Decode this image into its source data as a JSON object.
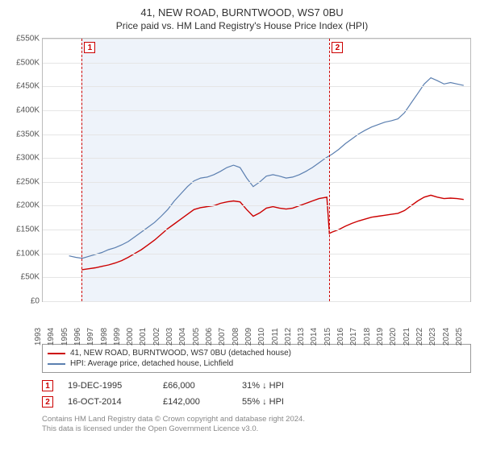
{
  "title": "41, NEW ROAD, BURNTWOOD, WS7 0BU",
  "subtitle": "Price paid vs. HM Land Registry's House Price Index (HPI)",
  "chart": {
    "type": "line",
    "background_color": "#ffffff",
    "shaded_band_color": "#eef3fa",
    "grid_color": "#e5e5e5",
    "border_color": "#bbbbbb",
    "xlim": [
      1993,
      2025.5
    ],
    "ylim": [
      0,
      550000
    ],
    "ytick_step": 50000,
    "y_ticks": [
      "£0",
      "£50K",
      "£100K",
      "£150K",
      "£200K",
      "£250K",
      "£300K",
      "£350K",
      "£400K",
      "£450K",
      "£500K",
      "£550K"
    ],
    "x_ticks": [
      1993,
      1994,
      1995,
      1996,
      1997,
      1998,
      1999,
      2000,
      2001,
      2002,
      2003,
      2004,
      2005,
      2006,
      2007,
      2008,
      2009,
      2010,
      2011,
      2012,
      2013,
      2014,
      2015,
      2016,
      2017,
      2018,
      2019,
      2020,
      2021,
      2022,
      2023,
      2024,
      2025
    ],
    "label_fontsize": 10,
    "shaded_range": [
      1995.97,
      2014.79
    ],
    "series": [
      {
        "name": "41, NEW ROAD, BURNTWOOD, WS7 0BU (detached house)",
        "color": "#cc0000",
        "line_width": 1.4,
        "points": [
          [
            1995.97,
            66000
          ],
          [
            1996.5,
            68000
          ],
          [
            1997,
            70000
          ],
          [
            1997.5,
            73000
          ],
          [
            1998,
            76000
          ],
          [
            1998.5,
            80000
          ],
          [
            1999,
            85000
          ],
          [
            1999.5,
            92000
          ],
          [
            2000,
            100000
          ],
          [
            2000.5,
            108000
          ],
          [
            2001,
            118000
          ],
          [
            2001.5,
            128000
          ],
          [
            2002,
            140000
          ],
          [
            2002.5,
            152000
          ],
          [
            2003,
            162000
          ],
          [
            2003.5,
            172000
          ],
          [
            2004,
            182000
          ],
          [
            2004.5,
            192000
          ],
          [
            2005,
            196000
          ],
          [
            2005.5,
            198000
          ],
          [
            2006,
            200000
          ],
          [
            2006.5,
            205000
          ],
          [
            2007,
            208000
          ],
          [
            2007.5,
            210000
          ],
          [
            2008,
            208000
          ],
          [
            2008.5,
            192000
          ],
          [
            2009,
            178000
          ],
          [
            2009.5,
            185000
          ],
          [
            2010,
            195000
          ],
          [
            2010.5,
            198000
          ],
          [
            2011,
            195000
          ],
          [
            2011.5,
            193000
          ],
          [
            2012,
            195000
          ],
          [
            2012.5,
            200000
          ],
          [
            2013,
            205000
          ],
          [
            2013.5,
            210000
          ],
          [
            2014,
            215000
          ],
          [
            2014.6,
            218000
          ],
          [
            2014.79,
            142000
          ],
          [
            2015,
            145000
          ],
          [
            2015.5,
            150000
          ],
          [
            2016,
            157000
          ],
          [
            2016.5,
            163000
          ],
          [
            2017,
            168000
          ],
          [
            2017.5,
            172000
          ],
          [
            2018,
            176000
          ],
          [
            2018.5,
            178000
          ],
          [
            2019,
            180000
          ],
          [
            2019.5,
            182000
          ],
          [
            2020,
            184000
          ],
          [
            2020.5,
            190000
          ],
          [
            2021,
            200000
          ],
          [
            2021.5,
            210000
          ],
          [
            2022,
            218000
          ],
          [
            2022.5,
            222000
          ],
          [
            2023,
            218000
          ],
          [
            2023.5,
            215000
          ],
          [
            2024,
            216000
          ],
          [
            2024.5,
            215000
          ],
          [
            2025,
            213000
          ]
        ]
      },
      {
        "name": "HPI: Average price, detached house, Lichfield",
        "color": "#5b7fb0",
        "line_width": 1.2,
        "points": [
          [
            1995,
            95000
          ],
          [
            1995.5,
            92000
          ],
          [
            1996,
            90000
          ],
          [
            1996.5,
            94000
          ],
          [
            1997,
            98000
          ],
          [
            1997.5,
            102000
          ],
          [
            1998,
            108000
          ],
          [
            1998.5,
            112000
          ],
          [
            1999,
            118000
          ],
          [
            1999.5,
            125000
          ],
          [
            2000,
            135000
          ],
          [
            2000.5,
            145000
          ],
          [
            2001,
            155000
          ],
          [
            2001.5,
            165000
          ],
          [
            2002,
            178000
          ],
          [
            2002.5,
            192000
          ],
          [
            2003,
            210000
          ],
          [
            2003.5,
            225000
          ],
          [
            2004,
            240000
          ],
          [
            2004.5,
            252000
          ],
          [
            2005,
            258000
          ],
          [
            2005.5,
            260000
          ],
          [
            2006,
            265000
          ],
          [
            2006.5,
            272000
          ],
          [
            2007,
            280000
          ],
          [
            2007.5,
            285000
          ],
          [
            2008,
            280000
          ],
          [
            2008.5,
            258000
          ],
          [
            2009,
            240000
          ],
          [
            2009.5,
            250000
          ],
          [
            2010,
            262000
          ],
          [
            2010.5,
            265000
          ],
          [
            2011,
            262000
          ],
          [
            2011.5,
            258000
          ],
          [
            2012,
            260000
          ],
          [
            2012.5,
            265000
          ],
          [
            2013,
            272000
          ],
          [
            2013.5,
            280000
          ],
          [
            2014,
            290000
          ],
          [
            2014.5,
            300000
          ],
          [
            2015,
            308000
          ],
          [
            2015.5,
            318000
          ],
          [
            2016,
            330000
          ],
          [
            2016.5,
            340000
          ],
          [
            2017,
            350000
          ],
          [
            2017.5,
            358000
          ],
          [
            2018,
            365000
          ],
          [
            2018.5,
            370000
          ],
          [
            2019,
            375000
          ],
          [
            2019.5,
            378000
          ],
          [
            2020,
            382000
          ],
          [
            2020.5,
            395000
          ],
          [
            2021,
            415000
          ],
          [
            2021.5,
            435000
          ],
          [
            2022,
            455000
          ],
          [
            2022.5,
            468000
          ],
          [
            2023,
            462000
          ],
          [
            2023.5,
            455000
          ],
          [
            2024,
            458000
          ],
          [
            2024.5,
            455000
          ],
          [
            2025,
            452000
          ]
        ]
      }
    ],
    "markers": [
      {
        "id": "1",
        "x": 1995.97,
        "color": "#cc0000"
      },
      {
        "id": "2",
        "x": 2014.79,
        "color": "#cc0000"
      }
    ]
  },
  "legend": {
    "items": [
      {
        "color": "#cc0000",
        "label": "41, NEW ROAD, BURNTWOOD, WS7 0BU (detached house)"
      },
      {
        "color": "#5b7fb0",
        "label": "HPI: Average price, detached house, Lichfield"
      }
    ]
  },
  "events": [
    {
      "id": "1",
      "date": "19-DEC-1995",
      "price": "£66,000",
      "delta": "31% ↓ HPI"
    },
    {
      "id": "2",
      "date": "16-OCT-2014",
      "price": "£142,000",
      "delta": "55% ↓ HPI"
    }
  ],
  "footnote_line1": "Contains HM Land Registry data © Crown copyright and database right 2024.",
  "footnote_line2": "This data is licensed under the Open Government Licence v3.0."
}
